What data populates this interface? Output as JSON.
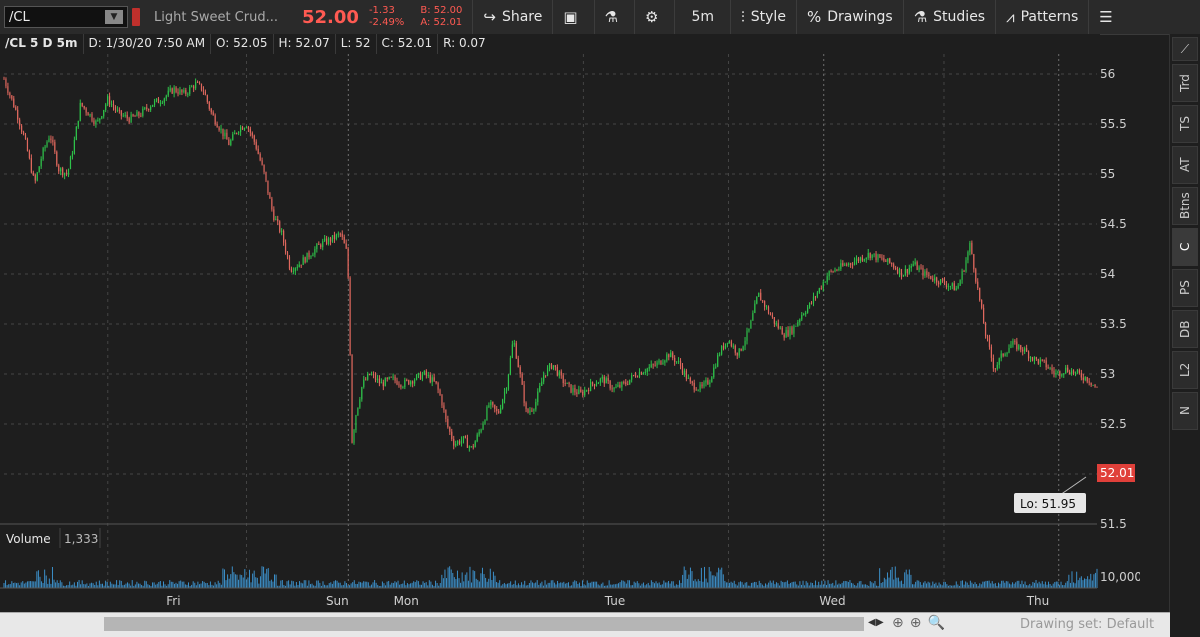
{
  "toolbar": {
    "symbol": "/CL",
    "description": "Light Sweet Crud...",
    "last_price": "52.00",
    "net_change": "-1.33",
    "pct_change": "-2.49%",
    "bid": "B: 52.00",
    "ask": "A: 52.01",
    "share_label": "Share",
    "period_label": "5m",
    "style_label": "Style",
    "drawings_label": "Drawings",
    "studies_label": "Studies",
    "patterns_label": "Patterns"
  },
  "header": {
    "symbol": "/CL 5 D 5m",
    "date": "D: 1/30/20 7:50 AM",
    "open": "O: 52.05",
    "high": "H: 52.07",
    "low": "L: 52",
    "close": "C: 52.01",
    "range": "R: 0.07"
  },
  "sidebar": {
    "tabs": [
      "Trd",
      "TS",
      "AT",
      "Btns",
      "C",
      "PS",
      "DB",
      "L2",
      "N"
    ],
    "active": "C"
  },
  "colors": {
    "up": "#2ec24a",
    "down": "#e0685e",
    "price_tag": "#e0403a",
    "volume": "#3c8fc8",
    "grid": "#555555"
  },
  "chart_data": {
    "type": "candlestick",
    "symbol": "/CL",
    "y_ticks": [
      "56",
      "55.5",
      "55",
      "54.5",
      "54",
      "53.5",
      "53",
      "52.5",
      "52",
      "51.5"
    ],
    "ylim": [
      51.5,
      56.2
    ],
    "x_labels": [
      "Fri",
      "Sun",
      "Mon",
      "Tue",
      "Wed",
      "Thu"
    ],
    "x_label_pos": [
      0.155,
      0.305,
      0.368,
      0.559,
      0.758,
      0.946
    ],
    "session_dividers": [
      0.315,
      0.75,
      0.965
    ],
    "day_dividers": [
      0.095,
      0.222,
      0.53,
      0.663,
      0.86
    ],
    "price_path": [
      [
        0.0,
        55.95
      ],
      [
        0.012,
        55.6
      ],
      [
        0.02,
        55.3
      ],
      [
        0.028,
        54.9
      ],
      [
        0.035,
        55.2
      ],
      [
        0.042,
        55.4
      ],
      [
        0.05,
        55.05
      ],
      [
        0.058,
        55.0
      ],
      [
        0.064,
        55.3
      ],
      [
        0.07,
        55.7
      ],
      [
        0.078,
        55.6
      ],
      [
        0.085,
        55.5
      ],
      [
        0.095,
        55.75
      ],
      [
        0.105,
        55.6
      ],
      [
        0.115,
        55.55
      ],
      [
        0.125,
        55.6
      ],
      [
        0.135,
        55.7
      ],
      [
        0.145,
        55.75
      ],
      [
        0.155,
        55.85
      ],
      [
        0.165,
        55.8
      ],
      [
        0.175,
        55.9
      ],
      [
        0.182,
        55.85
      ],
      [
        0.19,
        55.6
      ],
      [
        0.198,
        55.45
      ],
      [
        0.206,
        55.3
      ],
      [
        0.214,
        55.45
      ],
      [
        0.222,
        55.5
      ],
      [
        0.23,
        55.3
      ],
      [
        0.238,
        55.0
      ],
      [
        0.246,
        54.6
      ],
      [
        0.254,
        54.4
      ],
      [
        0.262,
        54.05
      ],
      [
        0.27,
        54.1
      ],
      [
        0.28,
        54.2
      ],
      [
        0.29,
        54.3
      ],
      [
        0.3,
        54.35
      ],
      [
        0.308,
        54.4
      ],
      [
        0.314,
        54.2
      ],
      [
        0.316,
        53.65
      ],
      [
        0.318,
        52.3
      ],
      [
        0.322,
        52.6
      ],
      [
        0.328,
        52.9
      ],
      [
        0.335,
        53.0
      ],
      [
        0.345,
        52.9
      ],
      [
        0.355,
        52.95
      ],
      [
        0.365,
        52.9
      ],
      [
        0.375,
        52.95
      ],
      [
        0.385,
        53.0
      ],
      [
        0.395,
        52.9
      ],
      [
        0.4,
        52.75
      ],
      [
        0.405,
        52.5
      ],
      [
        0.412,
        52.3
      ],
      [
        0.42,
        52.35
      ],
      [
        0.428,
        52.25
      ],
      [
        0.436,
        52.45
      ],
      [
        0.444,
        52.7
      ],
      [
        0.452,
        52.6
      ],
      [
        0.46,
        52.9
      ],
      [
        0.466,
        53.35
      ],
      [
        0.472,
        53.0
      ],
      [
        0.478,
        52.6
      ],
      [
        0.486,
        52.7
      ],
      [
        0.494,
        53.0
      ],
      [
        0.502,
        53.1
      ],
      [
        0.51,
        52.95
      ],
      [
        0.518,
        52.85
      ],
      [
        0.528,
        52.8
      ],
      [
        0.538,
        52.9
      ],
      [
        0.548,
        52.95
      ],
      [
        0.558,
        52.85
      ],
      [
        0.568,
        52.9
      ],
      [
        0.578,
        53.0
      ],
      [
        0.588,
        53.05
      ],
      [
        0.598,
        53.1
      ],
      [
        0.608,
        53.2
      ],
      [
        0.618,
        53.1
      ],
      [
        0.628,
        52.9
      ],
      [
        0.638,
        52.85
      ],
      [
        0.646,
        52.95
      ],
      [
        0.654,
        53.2
      ],
      [
        0.662,
        53.35
      ],
      [
        0.672,
        53.2
      ],
      [
        0.682,
        53.45
      ],
      [
        0.69,
        53.8
      ],
      [
        0.698,
        53.65
      ],
      [
        0.706,
        53.5
      ],
      [
        0.714,
        53.4
      ],
      [
        0.722,
        53.45
      ],
      [
        0.73,
        53.6
      ],
      [
        0.738,
        53.7
      ],
      [
        0.746,
        53.85
      ],
      [
        0.754,
        54.0
      ],
      [
        0.762,
        54.05
      ],
      [
        0.772,
        54.1
      ],
      [
        0.782,
        54.15
      ],
      [
        0.792,
        54.2
      ],
      [
        0.802,
        54.15
      ],
      [
        0.812,
        54.1
      ],
      [
        0.822,
        54.0
      ],
      [
        0.832,
        54.1
      ],
      [
        0.842,
        54.0
      ],
      [
        0.852,
        53.95
      ],
      [
        0.862,
        53.9
      ],
      [
        0.872,
        53.85
      ],
      [
        0.878,
        54.05
      ],
      [
        0.884,
        54.3
      ],
      [
        0.89,
        53.9
      ],
      [
        0.898,
        53.4
      ],
      [
        0.906,
        53.05
      ],
      [
        0.914,
        53.2
      ],
      [
        0.922,
        53.3
      ],
      [
        0.932,
        53.25
      ],
      [
        0.942,
        53.15
      ],
      [
        0.952,
        53.1
      ],
      [
        0.962,
        53.0
      ],
      [
        0.972,
        53.05
      ],
      [
        0.982,
        53.0
      ],
      [
        0.992,
        52.95
      ],
      [
        1.0,
        52.85
      ]
    ],
    "volume_label": "Volume",
    "volume_value": "1,333",
    "volume_tick": "10,000",
    "last_tag": "52.01",
    "low_bubble": "Lo: 51.95"
  }
}
